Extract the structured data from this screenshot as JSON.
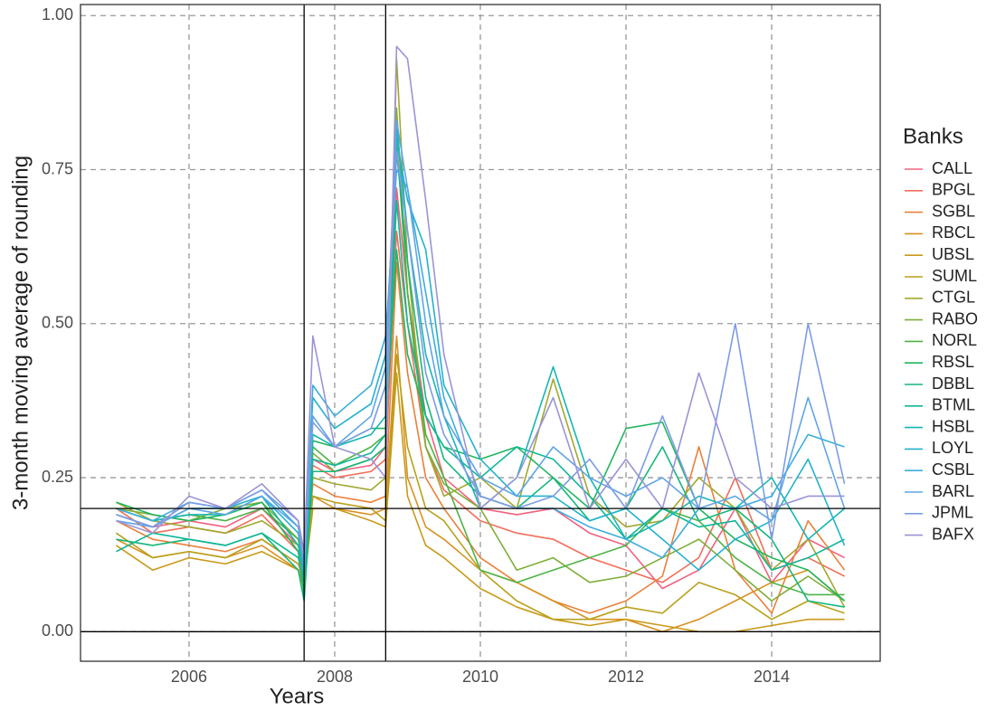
{
  "chart_data": {
    "type": "line",
    "x_label": "Years",
    "y_label": "3-month moving average of rounding",
    "legend_title": "Banks",
    "legend_position": "right",
    "grid": true,
    "xlim": [
      2004.51,
      2015.49
    ],
    "ylim": [
      -0.048,
      1.018
    ],
    "xticks": [
      2006,
      2008,
      2010,
      2012,
      2014
    ],
    "yticks": [
      {
        "value": 0,
        "label": "0.00"
      },
      {
        "value": 0.25,
        "label": "0.25"
      },
      {
        "value": 0.5,
        "label": "0.50"
      },
      {
        "value": 0.75,
        "label": "0.75"
      },
      {
        "value": 1,
        "label": "1.00"
      }
    ],
    "vlines": [
      2007.58,
      2008.7
    ],
    "hlines": [
      0,
      0.2
    ],
    "x": [
      2005,
      2005.5,
      2006,
      2006.5,
      2007,
      2007.5,
      2007.58,
      2007.7,
      2008,
      2008.5,
      2008.7,
      2008.85,
      2009,
      2009.25,
      2009.5,
      2010,
      2010.5,
      2011,
      2011.5,
      2012,
      2012.5,
      2013,
      2013.5,
      2014,
      2014.5,
      2015
    ],
    "series": [
      {
        "name": "CALL",
        "color": "#F0627F",
        "values": [
          0.19,
          0.17,
          0.18,
          0.17,
          0.2,
          0.14,
          0.1,
          0.28,
          0.26,
          0.27,
          0.3,
          0.72,
          0.55,
          0.35,
          0.25,
          0.2,
          0.19,
          0.2,
          0.16,
          0.14,
          0.07,
          0.1,
          0.2,
          0.08,
          0.15,
          0.12
        ]
      },
      {
        "name": "BPGL",
        "color": "#F16E5A",
        "values": [
          0.2,
          0.16,
          0.17,
          0.16,
          0.19,
          0.13,
          0.09,
          0.27,
          0.25,
          0.26,
          0.28,
          0.65,
          0.5,
          0.3,
          0.23,
          0.18,
          0.16,
          0.15,
          0.12,
          0.1,
          0.08,
          0.12,
          0.25,
          0.1,
          0.12,
          0.09
        ]
      },
      {
        "name": "SGBL",
        "color": "#E9803A",
        "values": [
          0.18,
          0.15,
          0.14,
          0.13,
          0.15,
          0.11,
          0.08,
          0.24,
          0.22,
          0.21,
          0.22,
          0.6,
          0.42,
          0.25,
          0.2,
          0.12,
          0.08,
          0.05,
          0.03,
          0.05,
          0.09,
          0.3,
          0.1,
          0.03,
          0.18,
          0.1
        ]
      },
      {
        "name": "RBCL",
        "color": "#D99222",
        "values": [
          0.15,
          0.12,
          0.13,
          0.12,
          0.14,
          0.1,
          0.07,
          0.22,
          0.2,
          0.19,
          0.2,
          0.48,
          0.25,
          0.17,
          0.15,
          0.1,
          0.08,
          0.05,
          0.02,
          0.02,
          0,
          0.02,
          0.05,
          0.08,
          0.1,
          0.05
        ]
      },
      {
        "name": "UBSL",
        "color": "#C99A1A",
        "values": [
          0.14,
          0.1,
          0.12,
          0.11,
          0.13,
          0.1,
          0.08,
          0.2,
          0.2,
          0.18,
          0.17,
          0.42,
          0.22,
          0.14,
          0.12,
          0.07,
          0.04,
          0.02,
          0.01,
          0.02,
          0.01,
          0,
          0,
          0.01,
          0.02,
          0.02
        ]
      },
      {
        "name": "SUML",
        "color": "#B8A11C",
        "values": [
          0.16,
          0.12,
          0.13,
          0.12,
          0.15,
          0.11,
          0.09,
          0.22,
          0.21,
          0.2,
          0.18,
          0.45,
          0.3,
          0.2,
          0.18,
          0.1,
          0.05,
          0.02,
          0.02,
          0.04,
          0.03,
          0.08,
          0.06,
          0.02,
          0.05,
          0.03
        ]
      },
      {
        "name": "CTGL",
        "color": "#A2A830",
        "values": [
          0.21,
          0.18,
          0.17,
          0.16,
          0.18,
          0.14,
          0.1,
          0.25,
          0.24,
          0.23,
          0.25,
          0.93,
          0.6,
          0.3,
          0.22,
          0.25,
          0.2,
          0.41,
          0.22,
          0.17,
          0.18,
          0.25,
          0.2,
          0.1,
          0.15,
          0.04
        ]
      },
      {
        "name": "RABO",
        "color": "#7FAE3A",
        "values": [
          0.2,
          0.19,
          0.18,
          0.2,
          0.21,
          0.15,
          0.11,
          0.29,
          0.26,
          0.28,
          0.3,
          0.85,
          0.55,
          0.3,
          0.24,
          0.2,
          0.1,
          0.12,
          0.08,
          0.09,
          0.12,
          0.15,
          0.1,
          0.05,
          0.09,
          0.05
        ]
      },
      {
        "name": "NORL",
        "color": "#4DB447",
        "values": [
          0.2,
          0.18,
          0.19,
          0.18,
          0.2,
          0.15,
          0.1,
          0.3,
          0.27,
          0.3,
          0.32,
          0.8,
          0.55,
          0.32,
          0.25,
          0.1,
          0.08,
          0.1,
          0.12,
          0.14,
          0.2,
          0.18,
          0.12,
          0.08,
          0.06,
          0.06
        ]
      },
      {
        "name": "RBSL",
        "color": "#22B55F",
        "values": [
          0.21,
          0.19,
          0.18,
          0.19,
          0.21,
          0.13,
          0.06,
          0.31,
          0.3,
          0.33,
          0.33,
          0.62,
          0.45,
          0.35,
          0.3,
          0.28,
          0.3,
          0.25,
          0.2,
          0.33,
          0.34,
          0.2,
          0.15,
          0.12,
          0.1,
          0.05
        ]
      },
      {
        "name": "DBBL",
        "color": "#15B77C",
        "values": [
          0.15,
          0.14,
          0.15,
          0.14,
          0.16,
          0.1,
          0.05,
          0.26,
          0.26,
          0.28,
          0.3,
          0.78,
          0.6,
          0.38,
          0.28,
          0.22,
          0.2,
          0.25,
          0.18,
          0.2,
          0.3,
          0.18,
          0.2,
          0.15,
          0.05,
          0.04
        ]
      },
      {
        "name": "BTML",
        "color": "#10B798",
        "values": [
          0.13,
          0.16,
          0.15,
          0.14,
          0.16,
          0.12,
          0.08,
          0.28,
          0.27,
          0.29,
          0.32,
          0.7,
          0.5,
          0.35,
          0.3,
          0.25,
          0.3,
          0.28,
          0.22,
          0.15,
          0.2,
          0.17,
          0.18,
          0.1,
          0.12,
          0.15
        ]
      },
      {
        "name": "HSBL",
        "color": "#17B6B4",
        "values": [
          0.2,
          0.18,
          0.19,
          0.19,
          0.22,
          0.14,
          0.09,
          0.32,
          0.3,
          0.32,
          0.35,
          0.82,
          0.65,
          0.45,
          0.35,
          0.2,
          0.25,
          0.43,
          0.25,
          0.15,
          0.18,
          0.22,
          0.2,
          0.25,
          0.15,
          0.2
        ]
      },
      {
        "name": "LOYL",
        "color": "#23B2CC",
        "values": [
          0.19,
          0.17,
          0.2,
          0.2,
          0.22,
          0.16,
          0.1,
          0.38,
          0.33,
          0.37,
          0.45,
          0.8,
          0.7,
          0.62,
          0.4,
          0.28,
          0.22,
          0.22,
          0.18,
          0.2,
          0.15,
          0.1,
          0.15,
          0.18,
          0.28,
          0.14
        ]
      },
      {
        "name": "CSBL",
        "color": "#3DADDE",
        "values": [
          0.2,
          0.18,
          0.21,
          0.2,
          0.23,
          0.17,
          0.1,
          0.4,
          0.35,
          0.4,
          0.48,
          0.75,
          0.72,
          0.55,
          0.38,
          0.22,
          0.2,
          0.2,
          0.17,
          0.15,
          0.12,
          0.2,
          0.2,
          0.22,
          0.32,
          0.3
        ]
      },
      {
        "name": "BARL",
        "color": "#5FA5E6",
        "values": [
          0.18,
          0.17,
          0.2,
          0.19,
          0.22,
          0.17,
          0.11,
          0.35,
          0.3,
          0.35,
          0.43,
          0.83,
          0.72,
          0.5,
          0.35,
          0.25,
          0.22,
          0.3,
          0.25,
          0.22,
          0.25,
          0.2,
          0.22,
          0.18,
          0.38,
          0.2
        ]
      },
      {
        "name": "JPML",
        "color": "#7D9CE4",
        "values": [
          0.19,
          0.17,
          0.21,
          0.2,
          0.23,
          0.18,
          0.11,
          0.34,
          0.3,
          0.33,
          0.4,
          0.78,
          0.65,
          0.42,
          0.32,
          0.22,
          0.2,
          0.22,
          0.28,
          0.2,
          0.35,
          0.2,
          0.5,
          0.15,
          0.5,
          0.24
        ]
      },
      {
        "name": "BAFX",
        "color": "#9A94D5",
        "values": [
          0.18,
          0.16,
          0.22,
          0.2,
          0.24,
          0.18,
          0.13,
          0.48,
          0.3,
          0.28,
          0.25,
          0.95,
          0.93,
          0.7,
          0.45,
          0.2,
          0.25,
          0.38,
          0.2,
          0.28,
          0.2,
          0.42,
          0.25,
          0.2,
          0.22,
          0.22
        ]
      }
    ]
  }
}
